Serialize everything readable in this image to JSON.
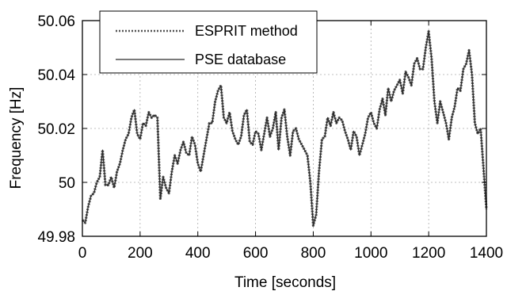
{
  "chart_data": {
    "type": "line",
    "xlabel": "Time [seconds]",
    "ylabel": "Frequency [Hz]",
    "xlim": [
      0,
      1400
    ],
    "ylim": [
      49.98,
      50.06
    ],
    "xticks": [
      0,
      200,
      400,
      600,
      800,
      1000,
      1200,
      1400
    ],
    "xtick_labels": [
      "0",
      "200",
      "400",
      "600",
      "800",
      "1000",
      "1200",
      "1400"
    ],
    "yticks": [
      49.98,
      50.0,
      50.02,
      50.04,
      50.06
    ],
    "ytick_labels": [
      "49.98",
      "50",
      "50.02",
      "50.04",
      "50.06"
    ],
    "grid": true,
    "legend_position": "top-left",
    "series": [
      {
        "name": "ESPRIT method",
        "style": "dotted",
        "color": "#555555",
        "x": [
          0,
          10,
          20,
          30,
          40,
          50,
          60,
          70,
          80,
          90,
          100,
          110,
          120,
          130,
          140,
          150,
          160,
          170,
          180,
          190,
          200,
          210,
          220,
          230,
          240,
          250,
          260,
          270,
          280,
          290,
          300,
          310,
          320,
          330,
          340,
          350,
          360,
          370,
          380,
          390,
          400,
          410,
          420,
          430,
          440,
          450,
          460,
          470,
          480,
          490,
          500,
          510,
          520,
          530,
          540,
          550,
          560,
          570,
          580,
          590,
          600,
          610,
          620,
          630,
          640,
          650,
          660,
          670,
          680,
          690,
          700,
          710,
          720,
          730,
          740,
          750,
          760,
          770,
          780,
          790,
          800,
          810,
          820,
          830,
          840,
          850,
          860,
          870,
          880,
          890,
          900,
          910,
          920,
          930,
          940,
          950,
          960,
          970,
          980,
          990,
          1000,
          1010,
          1020,
          1030,
          1040,
          1050,
          1060,
          1070,
          1080,
          1090,
          1100,
          1110,
          1120,
          1130,
          1140,
          1150,
          1160,
          1170,
          1180,
          1190,
          1200,
          1210,
          1220,
          1230,
          1240,
          1250,
          1260,
          1270,
          1280,
          1290,
          1300,
          1310,
          1320,
          1330,
          1340,
          1350,
          1360,
          1370,
          1380,
          1390,
          1400
        ],
        "y": [
          49.986,
          49.985,
          49.991,
          49.995,
          49.996,
          50.0,
          50.002,
          50.012,
          49.999,
          49.999,
          50.002,
          49.998,
          50.004,
          50.007,
          50.012,
          50.016,
          50.018,
          50.024,
          50.027,
          50.018,
          50.016,
          50.022,
          50.021,
          50.026,
          50.024,
          50.025,
          50.024,
          49.994,
          50.002,
          49.998,
          49.996,
          50.004,
          50.01,
          50.007,
          50.012,
          50.015,
          50.011,
          50.01,
          50.017,
          50.014,
          50.007,
          50.004,
          50.01,
          50.016,
          50.022,
          50.022,
          50.03,
          50.034,
          50.036,
          50.024,
          50.022,
          50.026,
          50.019,
          50.016,
          50.014,
          50.017,
          50.025,
          50.027,
          50.015,
          50.014,
          50.019,
          50.018,
          50.012,
          50.018,
          50.024,
          50.017,
          50.02,
          50.026,
          50.012,
          50.024,
          50.027,
          50.017,
          50.01,
          50.019,
          50.02,
          50.016,
          50.014,
          50.012,
          50.01,
          50.0,
          49.984,
          49.988,
          50.004,
          50.016,
          50.017,
          50.024,
          50.021,
          50.026,
          50.022,
          50.024,
          50.023,
          50.019,
          50.016,
          50.012,
          50.019,
          50.017,
          50.01,
          50.014,
          50.018,
          50.024,
          50.026,
          50.022,
          50.02,
          50.027,
          50.031,
          50.025,
          50.035,
          50.03,
          50.034,
          50.036,
          50.038,
          50.033,
          50.041,
          50.039,
          50.036,
          50.044,
          50.046,
          50.042,
          50.042,
          50.05,
          50.056,
          50.046,
          50.03,
          50.022,
          50.03,
          50.026,
          50.022,
          50.016,
          50.024,
          50.028,
          50.035,
          50.034,
          50.042,
          50.044,
          50.049,
          50.04,
          50.022,
          50.018,
          50.02,
          50.005,
          49.99
        ]
      },
      {
        "name": "PSE database",
        "style": "solid",
        "color": "#2a2a2a",
        "x": [
          0,
          10,
          20,
          30,
          40,
          50,
          60,
          70,
          80,
          90,
          100,
          110,
          120,
          130,
          140,
          150,
          160,
          170,
          180,
          190,
          200,
          210,
          220,
          230,
          240,
          250,
          260,
          270,
          280,
          290,
          300,
          310,
          320,
          330,
          340,
          350,
          360,
          370,
          380,
          390,
          400,
          410,
          420,
          430,
          440,
          450,
          460,
          470,
          480,
          490,
          500,
          510,
          520,
          530,
          540,
          550,
          560,
          570,
          580,
          590,
          600,
          610,
          620,
          630,
          640,
          650,
          660,
          670,
          680,
          690,
          700,
          710,
          720,
          730,
          740,
          750,
          760,
          770,
          780,
          790,
          800,
          810,
          820,
          830,
          840,
          850,
          860,
          870,
          880,
          890,
          900,
          910,
          920,
          930,
          940,
          950,
          960,
          970,
          980,
          990,
          1000,
          1010,
          1020,
          1030,
          1040,
          1050,
          1060,
          1070,
          1080,
          1090,
          1100,
          1110,
          1120,
          1130,
          1140,
          1150,
          1160,
          1170,
          1180,
          1190,
          1200,
          1210,
          1220,
          1230,
          1240,
          1250,
          1260,
          1270,
          1280,
          1290,
          1300,
          1310,
          1320,
          1330,
          1340,
          1350,
          1360,
          1370,
          1380,
          1390,
          1400
        ],
        "y": [
          49.986,
          49.985,
          49.991,
          49.995,
          49.996,
          50.0,
          50.002,
          50.012,
          49.999,
          49.999,
          50.002,
          49.998,
          50.004,
          50.007,
          50.012,
          50.016,
          50.018,
          50.024,
          50.027,
          50.018,
          50.016,
          50.022,
          50.021,
          50.026,
          50.024,
          50.025,
          50.024,
          49.994,
          50.002,
          49.998,
          49.996,
          50.004,
          50.01,
          50.007,
          50.012,
          50.015,
          50.011,
          50.01,
          50.017,
          50.014,
          50.007,
          50.004,
          50.01,
          50.016,
          50.022,
          50.022,
          50.03,
          50.034,
          50.036,
          50.024,
          50.022,
          50.026,
          50.019,
          50.016,
          50.014,
          50.017,
          50.025,
          50.027,
          50.015,
          50.014,
          50.019,
          50.018,
          50.012,
          50.018,
          50.024,
          50.017,
          50.02,
          50.026,
          50.012,
          50.024,
          50.027,
          50.017,
          50.01,
          50.019,
          50.02,
          50.016,
          50.014,
          50.012,
          50.01,
          50.0,
          49.984,
          49.988,
          50.004,
          50.016,
          50.017,
          50.024,
          50.021,
          50.026,
          50.022,
          50.024,
          50.023,
          50.019,
          50.016,
          50.012,
          50.019,
          50.017,
          50.01,
          50.014,
          50.018,
          50.024,
          50.026,
          50.022,
          50.02,
          50.027,
          50.031,
          50.025,
          50.035,
          50.03,
          50.034,
          50.036,
          50.038,
          50.033,
          50.041,
          50.039,
          50.036,
          50.044,
          50.046,
          50.042,
          50.042,
          50.05,
          50.056,
          50.046,
          50.03,
          50.022,
          50.03,
          50.026,
          50.022,
          50.016,
          50.024,
          50.028,
          50.035,
          50.034,
          50.042,
          50.044,
          50.049,
          50.04,
          50.022,
          50.018,
          50.02,
          50.005,
          49.99
        ]
      }
    ]
  }
}
